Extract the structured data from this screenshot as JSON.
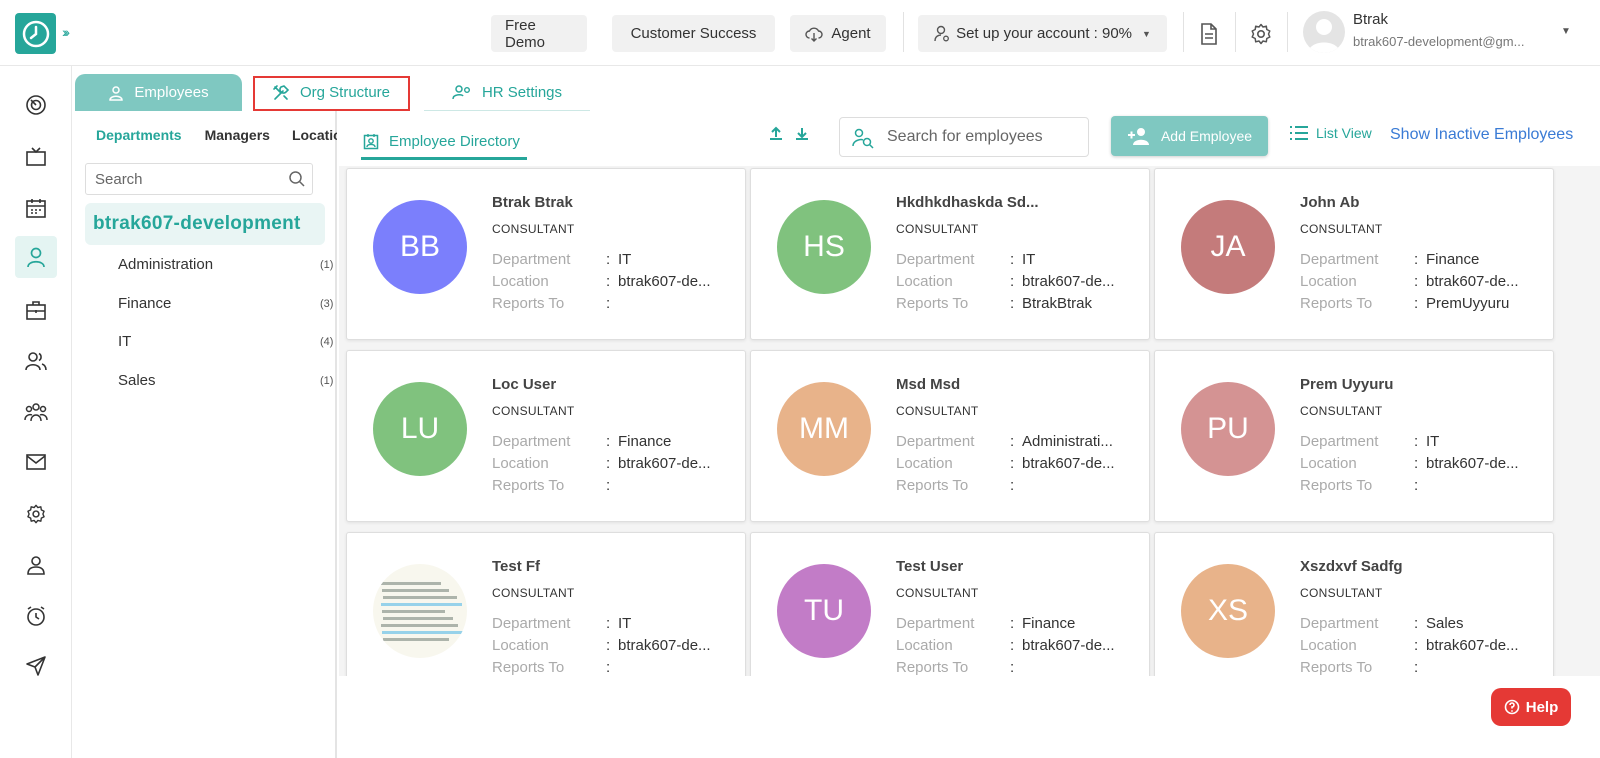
{
  "header": {
    "free_demo": "Free Demo",
    "customer_success": "Customer Success",
    "agent": "Agent",
    "setup": "Set up your account : 90%",
    "user_name": "Btrak",
    "user_email": "btrak607-development@gm..."
  },
  "tabs": {
    "employees": "Employees",
    "org_structure": "Org Structure",
    "hr_settings": "HR Settings"
  },
  "departments_panel": {
    "tabs": [
      "Departments",
      "Managers",
      "Locations"
    ],
    "search_placeholder": "Search",
    "root": "btrak607-development",
    "items": [
      {
        "name": "Administration",
        "count": "(1)"
      },
      {
        "name": "Finance",
        "count": "(3)"
      },
      {
        "name": "IT",
        "count": "(4)"
      },
      {
        "name": "Sales",
        "count": "(1)"
      }
    ]
  },
  "toolbar": {
    "directory_tab": "Employee Directory",
    "search_placeholder": "Search for employees",
    "add_employee": "Add Employee",
    "list_view": "List View",
    "show_inactive": "Show Inactive Employees"
  },
  "field_labels": {
    "department": "Department",
    "location": "Location",
    "reports_to": "Reports To",
    "colon": ":"
  },
  "employees": [
    {
      "initials": "BB",
      "name": "Btrak Btrak",
      "role": "CONSULTANT",
      "department": "IT",
      "location": "btrak607-de...",
      "reports_to": "",
      "color": "#7b7ffc"
    },
    {
      "initials": "HS",
      "name": "Hkdhkdhaskda Sd...",
      "role": "CONSULTANT",
      "department": "IT",
      "location": "btrak607-de...",
      "reports_to": "BtrakBtrak",
      "color": "#80c27e"
    },
    {
      "initials": "JA",
      "name": "John Ab",
      "role": "CONSULTANT",
      "department": "Finance",
      "location": "btrak607-de...",
      "reports_to": "PremUyyuru",
      "color": "#c47b7b"
    },
    {
      "initials": "LU",
      "name": "Loc User",
      "role": "CONSULTANT",
      "department": "Finance",
      "location": "btrak607-de...",
      "reports_to": "",
      "color": "#80c27e"
    },
    {
      "initials": "MM",
      "name": "Msd Msd",
      "role": "CONSULTANT",
      "department": "Administrati...",
      "location": "btrak607-de...",
      "reports_to": "",
      "color": "#e8b38a"
    },
    {
      "initials": "PU",
      "name": "Prem Uyyuru",
      "role": "CONSULTANT",
      "department": "IT",
      "location": "btrak607-de...",
      "reports_to": "",
      "color": "#d49393"
    },
    {
      "initials": "",
      "name": "Test Ff",
      "role": "CONSULTANT",
      "department": "IT",
      "location": "btrak607-de...",
      "reports_to": "",
      "color": ""
    },
    {
      "initials": "TU",
      "name": "Test User",
      "role": "CONSULTANT",
      "department": "Finance",
      "location": "btrak607-de...",
      "reports_to": "",
      "color": "#c27cc7"
    },
    {
      "initials": "XS",
      "name": "Xszdxvf Sadfg",
      "role": "CONSULTANT",
      "department": "Sales",
      "location": "btrak607-de...",
      "reports_to": "",
      "color": "#e8b38a"
    }
  ],
  "help": "Help",
  "accent_color": "#26a69a"
}
